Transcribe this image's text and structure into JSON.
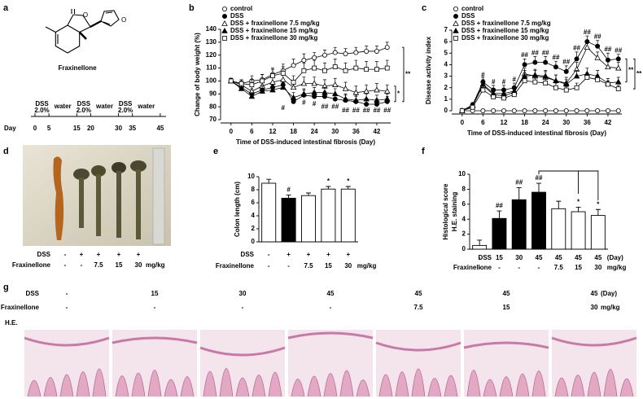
{
  "panel_labels": [
    "a",
    "b",
    "c",
    "d",
    "e",
    "f",
    "g"
  ],
  "structure": {
    "name": "Fraxinellone",
    "atom_labels": [
      "O",
      "O",
      "O"
    ]
  },
  "timeline": {
    "day_label": "Day",
    "days": [
      0,
      5,
      15,
      20,
      30,
      35,
      45
    ],
    "periods": [
      {
        "label": "DSS",
        "dose": "2.0%"
      },
      {
        "label": "water"
      },
      {
        "label": "DSS",
        "dose": "2.0%"
      },
      {
        "label": "water"
      },
      {
        "label": "DSS",
        "dose": "2.0%"
      },
      {
        "label": "water"
      }
    ]
  },
  "chart_data": [
    {
      "type": "line",
      "xlabel": "Time of DSS-induced intestinal fibrosis (Day)",
      "ylabel": "Change of body weight (%)",
      "x": [
        0,
        3,
        6,
        9,
        12,
        15,
        18,
        21,
        24,
        27,
        30,
        33,
        36,
        39,
        42,
        45
      ],
      "xlim": [
        -3,
        46
      ],
      "xticks": [
        0,
        6,
        12,
        18,
        24,
        30,
        36,
        42
      ],
      "ylim": [
        70,
        140
      ],
      "yticks": [
        70,
        80,
        90,
        100,
        110,
        120,
        130,
        140
      ],
      "legend": "upper left",
      "series": [
        {
          "name": "control",
          "marker": "circle-open",
          "color": "#000000",
          "values": [
            100,
            98,
            100,
            101,
            105,
            108,
            112,
            116,
            118,
            120,
            122,
            121,
            122,
            123,
            123,
            126
          ],
          "errors": [
            2,
            3,
            4,
            4,
            5,
            5,
            5,
            5,
            4,
            4,
            4,
            4,
            4,
            4,
            4,
            4
          ]
        },
        {
          "name": "DSS",
          "marker": "circle-filled",
          "color": "#000000",
          "values": [
            100,
            95,
            90,
            93,
            95,
            97,
            84,
            89,
            88,
            88,
            86,
            85,
            84,
            82,
            82,
            84
          ],
          "errors": [
            2,
            3,
            4,
            4,
            4,
            4,
            4,
            4,
            4,
            4,
            4,
            4,
            4,
            4,
            4,
            4
          ]
        },
        {
          "name": "DSS + fraxinellone 7.5 mg/kg",
          "marker": "triangle-open",
          "color": "#000000",
          "values": [
            100,
            97,
            92,
            96,
            99,
            101,
            95,
            98,
            98,
            96,
            97,
            94,
            91,
            92,
            93,
            92
          ],
          "errors": [
            2,
            3,
            4,
            4,
            5,
            5,
            5,
            5,
            5,
            5,
            5,
            5,
            5,
            5,
            5,
            5
          ]
        },
        {
          "name": "DSS + fraxinellone  15 mg/kg",
          "marker": "triangle-filled",
          "color": "#000000",
          "values": [
            100,
            94,
            88,
            92,
            93,
            95,
            87,
            90,
            91,
            91,
            90,
            86,
            85,
            86,
            85,
            86
          ],
          "errors": [
            2,
            3,
            3,
            4,
            4,
            4,
            4,
            4,
            4,
            4,
            4,
            4,
            4,
            4,
            4,
            4
          ]
        },
        {
          "name": "DSS + fraxinellone  30 mg/kg",
          "marker": "square-open",
          "color": "#000000",
          "values": [
            100,
            98,
            97,
            100,
            104,
            106,
            99,
            108,
            110,
            108,
            111,
            108,
            110,
            109,
            109,
            110
          ],
          "errors": [
            2,
            3,
            4,
            5,
            5,
            5,
            5,
            6,
            6,
            6,
            6,
            6,
            6,
            6,
            6,
            6
          ]
        }
      ],
      "annotations": [
        {
          "text": "#",
          "x": 15,
          "y": 79
        },
        {
          "text": "#",
          "x": 21,
          "y": 83
        },
        {
          "text": "#",
          "x": 24,
          "y": 82
        },
        {
          "text": "##",
          "x": 27,
          "y": 80
        },
        {
          "text": "##",
          "x": 30,
          "y": 80
        },
        {
          "text": "##",
          "x": 33,
          "y": 77
        },
        {
          "text": "##",
          "x": 36,
          "y": 77
        },
        {
          "text": "##",
          "x": 39,
          "y": 77
        },
        {
          "text": "##",
          "x": 42,
          "y": 77
        },
        {
          "text": "##",
          "x": 45,
          "y": 77
        }
      ],
      "brackets": [
        {
          "text": "*",
          "y": [
            84,
            96
          ]
        },
        {
          "text": "**",
          "y": [
            84,
            126
          ]
        }
      ]
    },
    {
      "type": "line",
      "xlabel": "Time of DSS-induced intestinal fibrosis (Day)",
      "ylabel": "Disease activity index",
      "x": [
        0,
        3,
        6,
        9,
        12,
        15,
        18,
        21,
        24,
        27,
        30,
        33,
        36,
        39,
        42,
        45
      ],
      "xlim": [
        -3,
        46
      ],
      "xticks": [
        0,
        6,
        12,
        18,
        24,
        30,
        36,
        42
      ],
      "ylim": [
        0,
        7
      ],
      "yticks": [
        0,
        1,
        2,
        3,
        4,
        5,
        6,
        7
      ],
      "legend": "upper left",
      "series": [
        {
          "name": "control",
          "marker": "circle-open",
          "color": "#000000",
          "values": [
            0,
            0,
            0,
            0,
            0,
            0,
            0,
            0,
            0,
            0,
            0,
            0,
            0,
            0,
            0,
            0
          ],
          "errors": [
            0,
            0,
            0,
            0,
            0,
            0,
            0,
            0,
            0,
            0,
            0,
            0,
            0,
            0,
            0,
            0
          ]
        },
        {
          "name": "DSS",
          "marker": "circle-filled",
          "color": "#000000",
          "values": [
            0,
            0.5,
            2.5,
            1.8,
            1.8,
            2.0,
            4.0,
            4.2,
            4.2,
            3.8,
            3.4,
            4.5,
            6.0,
            5.6,
            4.4,
            4.5
          ],
          "errors": [
            0,
            0.2,
            0.4,
            0.4,
            0.4,
            0.4,
            0.5,
            0.5,
            0.5,
            0.5,
            0.5,
            0.6,
            0.5,
            0.5,
            0.6,
            0.4
          ]
        },
        {
          "name": "DSS + fraxinellone 7.5 mg/kg",
          "marker": "triangle-open",
          "color": "#000000",
          "values": [
            0,
            0.4,
            2.2,
            1.4,
            1.3,
            1.6,
            3.2,
            3.0,
            2.9,
            2.6,
            2.4,
            3.6,
            5.5,
            4.6,
            3.8,
            3.7
          ],
          "errors": [
            0,
            0.2,
            0.4,
            0.4,
            0.4,
            0.4,
            0.5,
            0.5,
            0.5,
            0.5,
            0.5,
            0.6,
            0.6,
            0.5,
            0.5,
            0.5
          ]
        },
        {
          "name": "DSS + fraxinellone  15 mg/kg",
          "marker": "triangle-filled",
          "color": "#000000",
          "values": [
            0,
            0.5,
            2.3,
            1.5,
            1.5,
            1.7,
            3.0,
            3.1,
            3.0,
            2.6,
            2.3,
            3.0,
            3.2,
            3.0,
            2.4,
            2.5
          ],
          "errors": [
            0,
            0.2,
            0.4,
            0.4,
            0.4,
            0.4,
            0.5,
            0.5,
            0.5,
            0.5,
            0.4,
            0.5,
            0.5,
            0.5,
            0.4,
            0.4
          ]
        },
        {
          "name": "DSS + fraxinellone  30 mg/kg",
          "marker": "square-open",
          "color": "#000000",
          "values": [
            0,
            0.3,
            1.8,
            1.2,
            1.1,
            1.4,
            2.6,
            2.5,
            2.4,
            2.0,
            1.8,
            2.0,
            2.9,
            2.7,
            2.3,
            1.9
          ],
          "errors": [
            0,
            0.2,
            0.4,
            0.3,
            0.3,
            0.3,
            0.4,
            0.4,
            0.4,
            0.4,
            0.3,
            0.4,
            0.4,
            0.4,
            0.3,
            0.3
          ]
        }
      ],
      "annotations": [
        {
          "text": "#",
          "x": 6,
          "y": 3.1
        },
        {
          "text": "#",
          "x": 9,
          "y": 2.5
        },
        {
          "text": "#",
          "x": 12,
          "y": 2.5
        },
        {
          "text": "#",
          "x": 15,
          "y": 2.7
        },
        {
          "text": "##",
          "x": 18,
          "y": 4.8
        },
        {
          "text": "##",
          "x": 21,
          "y": 5.0
        },
        {
          "text": "##",
          "x": 24,
          "y": 5.0
        },
        {
          "text": "##",
          "x": 27,
          "y": 4.6
        },
        {
          "text": "##",
          "x": 30,
          "y": 4.2
        },
        {
          "text": "##",
          "x": 33,
          "y": 5.4
        },
        {
          "text": "##",
          "x": 36,
          "y": 6.8
        },
        {
          "text": "##",
          "x": 39,
          "y": 6.4
        },
        {
          "text": "##",
          "x": 42,
          "y": 5.3
        },
        {
          "text": "##",
          "x": 45,
          "y": 5.2
        }
      ],
      "brackets": [
        {
          "text": "**",
          "y": [
            2.5,
            4.5
          ]
        },
        {
          "text": "**",
          "y": [
            1.9,
            4.5
          ]
        }
      ]
    },
    {
      "type": "bar",
      "ylabel": "Colon length (cm)",
      "ylim": [
        0,
        10
      ],
      "yticks": [
        0,
        2,
        4,
        6,
        8,
        10
      ],
      "values": [
        9.0,
        6.7,
        7.1,
        8.1,
        8.1
      ],
      "errors": [
        0.6,
        0.5,
        0.4,
        0.4,
        0.4
      ],
      "colors": [
        "#ffffff",
        "#000000",
        "#ffffff",
        "#ffffff",
        "#ffffff"
      ],
      "significance": [
        null,
        "#",
        null,
        "*",
        "*"
      ],
      "rows": [
        {
          "label": "DSS",
          "values": [
            "-",
            "+",
            "+",
            "+",
            "+"
          ]
        },
        {
          "label": "Fraxinellone",
          "values": [
            "-",
            "-",
            "7.5",
            "15",
            "30"
          ],
          "unit": "mg/kg"
        }
      ]
    },
    {
      "type": "bar",
      "ylabel": [
        "Histological score",
        "H.E. staining"
      ],
      "ylim": [
        0,
        10
      ],
      "yticks": [
        0,
        2,
        4,
        6,
        8,
        10
      ],
      "values": [
        0.5,
        4.1,
        6.6,
        7.6,
        5.4,
        5.0,
        4.5
      ],
      "errors": [
        0.7,
        1.0,
        1.6,
        1.2,
        1.0,
        0.6,
        0.8
      ],
      "colors": [
        "#ffffff",
        "#000000",
        "#000000",
        "#000000",
        "#ffffff",
        "#ffffff",
        "#ffffff"
      ],
      "significance": [
        null,
        "##",
        "##",
        "##",
        null,
        "*",
        "*"
      ],
      "rows": [
        {
          "label": "DSS",
          "values": [
            "-",
            "15",
            "30",
            "45",
            "45",
            "45",
            "45"
          ],
          "unit": "(Day)"
        },
        {
          "label": "Fraxinellone",
          "values": [
            "-",
            "-",
            "-",
            "-",
            "7.5",
            "15",
            "30"
          ],
          "unit": "mg/kg"
        }
      ]
    }
  ],
  "photo": {
    "rows": [
      {
        "label": "DSS",
        "values": [
          "-",
          "+",
          "+",
          "+",
          "+"
        ]
      },
      {
        "label": "Fraxinellone",
        "values": [
          "-",
          "-",
          "7.5",
          "15",
          "30"
        ],
        "unit": "mg/kg"
      }
    ]
  },
  "histology": {
    "stain": "H.E.",
    "rows": [
      {
        "label": "DSS",
        "values": [
          "-",
          "15",
          "30",
          "45",
          "45",
          "45",
          "45"
        ],
        "unit": "(Day)"
      },
      {
        "label": "Fraxinellone",
        "values": [
          "-",
          "-",
          "-",
          "-",
          "7.5",
          "15",
          "30"
        ],
        "unit": "mg/kg"
      }
    ]
  }
}
